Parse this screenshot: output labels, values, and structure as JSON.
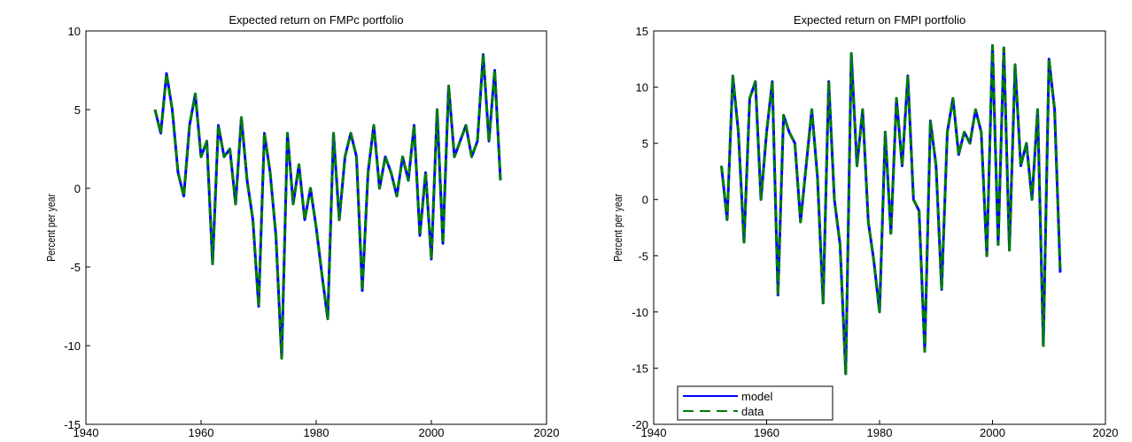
{
  "chart_data": [
    {
      "type": "line",
      "title": "Expected return on FMPc portfolio",
      "y_label": "Percent per year",
      "x": [
        1952,
        1953,
        1954,
        1955,
        1956,
        1957,
        1958,
        1959,
        1960,
        1961,
        1962,
        1963,
        1964,
        1965,
        1966,
        1967,
        1968,
        1969,
        1970,
        1971,
        1972,
        1973,
        1974,
        1975,
        1976,
        1977,
        1978,
        1979,
        1980,
        1981,
        1982,
        1983,
        1984,
        1985,
        1986,
        1987,
        1988,
        1989,
        1990,
        1991,
        1992,
        1993,
        1994,
        1995,
        1996,
        1997,
        1998,
        1999,
        2000,
        2001,
        2002,
        2003,
        2004,
        2005,
        2006,
        2007,
        2008,
        2009,
        2010,
        2011,
        2012
      ],
      "series": [
        {
          "name": "model",
          "color": "#0000ff",
          "linestyle": "solid",
          "values": [
            5,
            3.5,
            7.3,
            5,
            1,
            -0.5,
            4,
            6,
            2,
            3,
            -4.8,
            4,
            2,
            2.5,
            -1,
            4.5,
            0.5,
            -2,
            -7.5,
            3.5,
            1,
            -3,
            -10.8,
            3.5,
            -1,
            1.5,
            -2,
            0,
            -2.5,
            -5.5,
            -8.3,
            3.5,
            -2,
            2,
            3.5,
            2,
            -6.5,
            1,
            4,
            0,
            2,
            1,
            -0.5,
            2,
            0.5,
            4,
            -3,
            1,
            -4.5,
            5,
            -3.5,
            6.5,
            2,
            3,
            4,
            2,
            3,
            8.5,
            3,
            7.5,
            0.5
          ]
        },
        {
          "name": "data",
          "color": "#007f00",
          "linestyle": "dashed",
          "values": [
            5,
            3.5,
            7.3,
            5,
            1,
            -0.5,
            4,
            6,
            2,
            3,
            -4.8,
            4,
            2,
            2.5,
            -1,
            4.5,
            0.5,
            -2,
            -7.5,
            3.5,
            1,
            -3,
            -10.8,
            3.5,
            -1,
            1.5,
            -2,
            0,
            -2.5,
            -5.5,
            -8.3,
            3.5,
            -2,
            2,
            3.5,
            2,
            -6.5,
            1,
            4,
            0,
            2,
            1,
            -0.5,
            2,
            0.5,
            4,
            -3,
            1,
            -4.5,
            5,
            -3.5,
            6.5,
            2,
            3,
            4,
            2,
            3,
            8.5,
            3,
            7.5,
            0.5
          ]
        }
      ],
      "xlim": [
        1940,
        2020
      ],
      "xticks": [
        1940,
        1960,
        1980,
        2000,
        2020
      ],
      "ylim": [
        -15,
        10
      ],
      "yticks": [
        -15,
        -10,
        -5,
        0,
        5,
        10
      ]
    },
    {
      "type": "line",
      "title": "Expected return on FMPI portfolio",
      "y_label": "Percent per year",
      "x": [
        1952,
        1953,
        1954,
        1955,
        1956,
        1957,
        1958,
        1959,
        1960,
        1961,
        1962,
        1963,
        1964,
        1965,
        1966,
        1967,
        1968,
        1969,
        1970,
        1971,
        1972,
        1973,
        1974,
        1975,
        1976,
        1977,
        1978,
        1979,
        1980,
        1981,
        1982,
        1983,
        1984,
        1985,
        1986,
        1987,
        1988,
        1989,
        1990,
        1991,
        1992,
        1993,
        1994,
        1995,
        1996,
        1997,
        1998,
        1999,
        2000,
        2001,
        2002,
        2003,
        2004,
        2005,
        2006,
        2007,
        2008,
        2009,
        2010,
        2011,
        2012
      ],
      "series": [
        {
          "name": "model",
          "color": "#0000ff",
          "linestyle": "solid",
          "values": [
            3,
            -1.8,
            11,
            6,
            -3.8,
            9,
            10.5,
            0,
            6,
            10.5,
            -8.5,
            7.5,
            6,
            5,
            -2,
            3,
            8,
            2,
            -9.2,
            10.5,
            0,
            -4,
            -15.5,
            13,
            3,
            8,
            -2,
            -5.5,
            -10,
            6,
            -3,
            9,
            3,
            11,
            0,
            -1,
            -13.5,
            7,
            3,
            -8,
            6,
            9,
            4,
            6,
            5,
            8,
            6,
            -5,
            13.7,
            -4,
            13.5,
            -4.5,
            12,
            3,
            5,
            0,
            8,
            -13,
            12.5,
            8,
            -6.5
          ]
        },
        {
          "name": "data",
          "color": "#007f00",
          "linestyle": "dashed",
          "values": [
            3,
            -1.8,
            11,
            6,
            -3.8,
            9,
            10.5,
            0,
            6,
            10.5,
            -8.5,
            7.5,
            6,
            5,
            -2,
            3,
            8,
            2,
            -9.2,
            10.5,
            0,
            -4,
            -15.5,
            13,
            3,
            8,
            -2,
            -5.5,
            -10,
            6,
            -3,
            9,
            3,
            11,
            0,
            -1,
            -13.5,
            7,
            3,
            -8,
            6,
            9,
            4,
            6,
            5,
            8,
            6,
            -5,
            13.7,
            -4,
            13.5,
            -4.5,
            12,
            3,
            5,
            0,
            8,
            -13,
            12.5,
            8,
            -6.5
          ]
        }
      ],
      "xlim": [
        1940,
        2020
      ],
      "xticks": [
        1940,
        1960,
        1980,
        2000,
        2020
      ],
      "ylim": [
        -20,
        15
      ],
      "yticks": [
        -20,
        -15,
        -10,
        -5,
        0,
        5,
        10,
        15
      ],
      "legend": "lower left"
    }
  ]
}
